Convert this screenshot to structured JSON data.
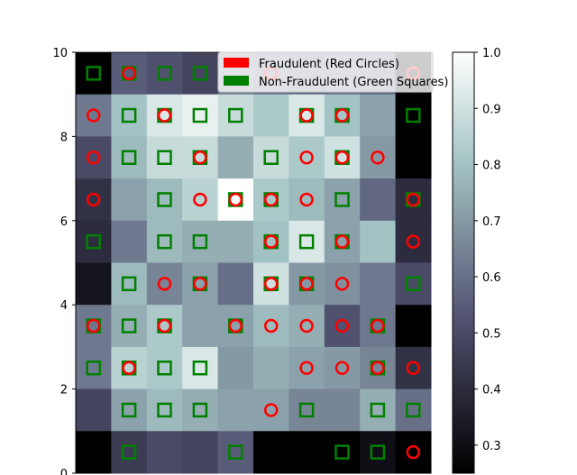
{
  "chart_data": {
    "type": "heatmap",
    "title": "",
    "xlabel": "",
    "ylabel": "",
    "xlim": [
      0,
      10
    ],
    "ylim": [
      0,
      10
    ],
    "grid": false,
    "y_ticks": [
      "0",
      "2",
      "4",
      "6",
      "8",
      "10"
    ],
    "heatmap": {
      "rows_top_to_bottom": [
        [
          0.18,
          0.55,
          0.52,
          0.48,
          0.62,
          0.6,
          0.58,
          0.6,
          0.58,
          0.28
        ],
        [
          0.62,
          0.8,
          0.92,
          0.95,
          0.88,
          0.82,
          0.92,
          0.8,
          0.72,
          0.25
        ],
        [
          0.5,
          0.78,
          0.88,
          0.88,
          0.75,
          0.88,
          0.82,
          0.9,
          0.7,
          0.22
        ],
        [
          0.42,
          0.72,
          0.78,
          0.85,
          1.0,
          0.82,
          0.78,
          0.72,
          0.58,
          0.4
        ],
        [
          0.4,
          0.62,
          0.78,
          0.75,
          0.75,
          0.8,
          0.92,
          0.72,
          0.8,
          0.4
        ],
        [
          0.32,
          0.78,
          0.65,
          0.72,
          0.6,
          0.9,
          0.7,
          0.68,
          0.62,
          0.5
        ],
        [
          0.62,
          0.75,
          0.82,
          0.72,
          0.72,
          0.78,
          0.75,
          0.52,
          0.62,
          0.2
        ],
        [
          0.62,
          0.85,
          0.82,
          0.92,
          0.7,
          0.75,
          0.72,
          0.7,
          0.65,
          0.42
        ],
        [
          0.48,
          0.72,
          0.78,
          0.75,
          0.72,
          0.72,
          0.65,
          0.65,
          0.75,
          0.6
        ],
        [
          0.15,
          0.45,
          0.5,
          0.48,
          0.55,
          0.2,
          0.22,
          0.22,
          0.3,
          0.22
        ]
      ]
    },
    "colorbar": {
      "min": 0.25,
      "max": 1.0,
      "ticks": [
        "0.3",
        "0.4",
        "0.5",
        "0.6",
        "0.7",
        "0.8",
        "0.9",
        "1.0"
      ],
      "colormap": "bone"
    },
    "series": [
      {
        "name": "Fraudulent (Red Circles)",
        "marker": "circle",
        "color": "#ff0000",
        "points": [
          [
            1.5,
            9.5
          ],
          [
            5.5,
            9.5
          ],
          [
            9.5,
            9.5
          ],
          [
            0.5,
            8.5
          ],
          [
            2.5,
            8.5
          ],
          [
            6.5,
            8.5
          ],
          [
            7.5,
            8.5
          ],
          [
            0.5,
            7.5
          ],
          [
            3.5,
            7.5
          ],
          [
            6.5,
            7.5
          ],
          [
            7.5,
            7.5
          ],
          [
            8.5,
            7.5
          ],
          [
            0.5,
            6.5
          ],
          [
            3.5,
            6.5
          ],
          [
            4.5,
            6.5
          ],
          [
            5.5,
            6.5
          ],
          [
            6.5,
            6.5
          ],
          [
            9.5,
            6.5
          ],
          [
            5.5,
            5.5
          ],
          [
            7.5,
            5.5
          ],
          [
            9.5,
            5.5
          ],
          [
            2.5,
            4.5
          ],
          [
            3.5,
            4.5
          ],
          [
            5.5,
            4.5
          ],
          [
            6.5,
            4.5
          ],
          [
            7.5,
            4.5
          ],
          [
            0.5,
            3.5
          ],
          [
            2.5,
            3.5
          ],
          [
            4.5,
            3.5
          ],
          [
            5.5,
            3.5
          ],
          [
            6.5,
            3.5
          ],
          [
            7.5,
            3.5
          ],
          [
            8.5,
            3.5
          ],
          [
            1.5,
            2.5
          ],
          [
            6.5,
            2.5
          ],
          [
            7.5,
            2.5
          ],
          [
            8.5,
            2.5
          ],
          [
            9.5,
            2.5
          ],
          [
            5.5,
            1.5
          ],
          [
            9.5,
            0.5
          ]
        ]
      },
      {
        "name": "Non-Fraudulent (Green Squares)",
        "marker": "square",
        "color": "#008000",
        "points": [
          [
            0.5,
            9.5
          ],
          [
            1.5,
            9.5
          ],
          [
            2.5,
            9.5
          ],
          [
            3.5,
            9.5
          ],
          [
            1.5,
            8.5
          ],
          [
            2.5,
            8.5
          ],
          [
            3.5,
            8.5
          ],
          [
            4.5,
            8.5
          ],
          [
            6.5,
            8.5
          ],
          [
            7.5,
            8.5
          ],
          [
            9.5,
            8.5
          ],
          [
            1.5,
            7.5
          ],
          [
            2.5,
            7.5
          ],
          [
            3.5,
            7.5
          ],
          [
            5.5,
            7.5
          ],
          [
            7.5,
            7.5
          ],
          [
            2.5,
            6.5
          ],
          [
            4.5,
            6.5
          ],
          [
            5.5,
            6.5
          ],
          [
            7.5,
            6.5
          ],
          [
            9.5,
            6.5
          ],
          [
            0.5,
            5.5
          ],
          [
            2.5,
            5.5
          ],
          [
            3.5,
            5.5
          ],
          [
            5.5,
            5.5
          ],
          [
            6.5,
            5.5
          ],
          [
            7.5,
            5.5
          ],
          [
            1.5,
            4.5
          ],
          [
            3.5,
            4.5
          ],
          [
            5.5,
            4.5
          ],
          [
            6.5,
            4.5
          ],
          [
            9.5,
            4.5
          ],
          [
            0.5,
            3.5
          ],
          [
            1.5,
            3.5
          ],
          [
            2.5,
            3.5
          ],
          [
            4.5,
            3.5
          ],
          [
            8.5,
            3.5
          ],
          [
            0.5,
            2.5
          ],
          [
            1.5,
            2.5
          ],
          [
            2.5,
            2.5
          ],
          [
            3.5,
            2.5
          ],
          [
            8.5,
            2.5
          ],
          [
            1.5,
            1.5
          ],
          [
            2.5,
            1.5
          ],
          [
            3.5,
            1.5
          ],
          [
            6.5,
            1.5
          ],
          [
            8.5,
            1.5
          ],
          [
            9.5,
            1.5
          ],
          [
            1.5,
            0.5
          ],
          [
            4.5,
            0.5
          ],
          [
            7.5,
            0.5
          ],
          [
            8.5,
            0.5
          ]
        ]
      }
    ],
    "legend_placement": "top-right"
  }
}
